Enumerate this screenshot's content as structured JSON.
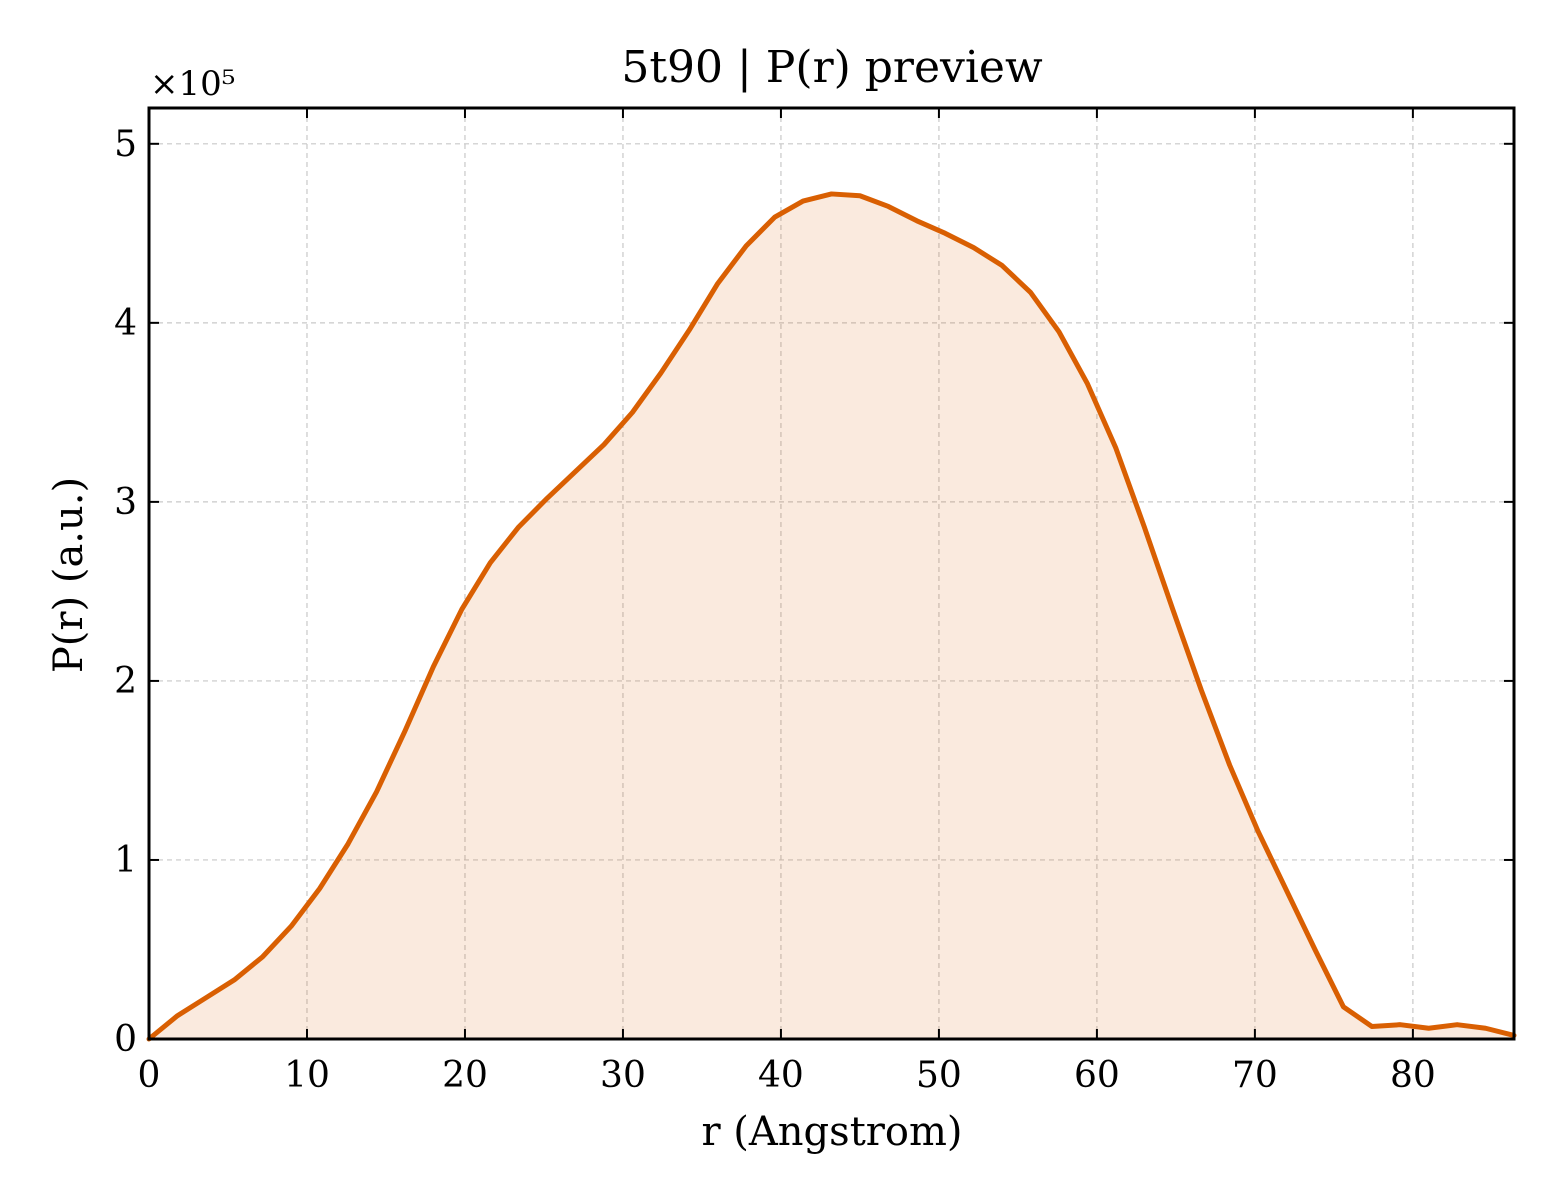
{
  "chart_data": {
    "type": "area",
    "title": "5t90 | P(r) preview",
    "xlabel": "r (Angstrom)",
    "ylabel": "P(r) (a.u.)",
    "y_offset_label": "×10⁵",
    "xlim": [
      0,
      86.4
    ],
    "ylim": [
      0,
      5.2
    ],
    "x_ticks": [
      0,
      10,
      20,
      30,
      40,
      50,
      60,
      70,
      80
    ],
    "y_ticks": [
      0,
      1,
      2,
      3,
      4,
      5
    ],
    "grid": true,
    "line_color": "#d95f02",
    "fill_color": "#d95f02",
    "fill_opacity": 0.13,
    "series": [
      {
        "x": [
          0,
          1.8,
          3.6,
          5.4,
          7.2,
          9.0,
          10.8,
          12.6,
          14.4,
          16.2,
          18.0,
          19.8,
          21.6,
          23.4,
          25.2,
          27.0,
          28.8,
          30.6,
          32.4,
          34.2,
          36.0,
          37.8,
          39.6,
          41.4,
          43.2,
          45.0,
          46.8,
          48.6,
          50.4,
          52.2,
          54.0,
          55.8,
          57.6,
          59.4,
          61.2,
          63.0,
          64.8,
          66.6,
          68.4,
          70.2,
          72.0,
          73.8,
          75.6,
          77.4,
          79.2,
          81.0,
          82.8,
          84.6,
          86.4
        ],
        "y": [
          0.0,
          0.13,
          0.23,
          0.33,
          0.46,
          0.63,
          0.84,
          1.09,
          1.38,
          1.72,
          2.08,
          2.4,
          2.66,
          2.86,
          3.02,
          3.17,
          3.32,
          3.5,
          3.72,
          3.96,
          4.22,
          4.43,
          4.59,
          4.68,
          4.72,
          4.71,
          4.65,
          4.57,
          4.5,
          4.42,
          4.32,
          4.17,
          3.95,
          3.66,
          3.3,
          2.86,
          2.4,
          1.95,
          1.53,
          1.16,
          0.83,
          0.5,
          0.18,
          0.07,
          0.08,
          0.06,
          0.08,
          0.06,
          0.02
        ]
      }
    ]
  }
}
